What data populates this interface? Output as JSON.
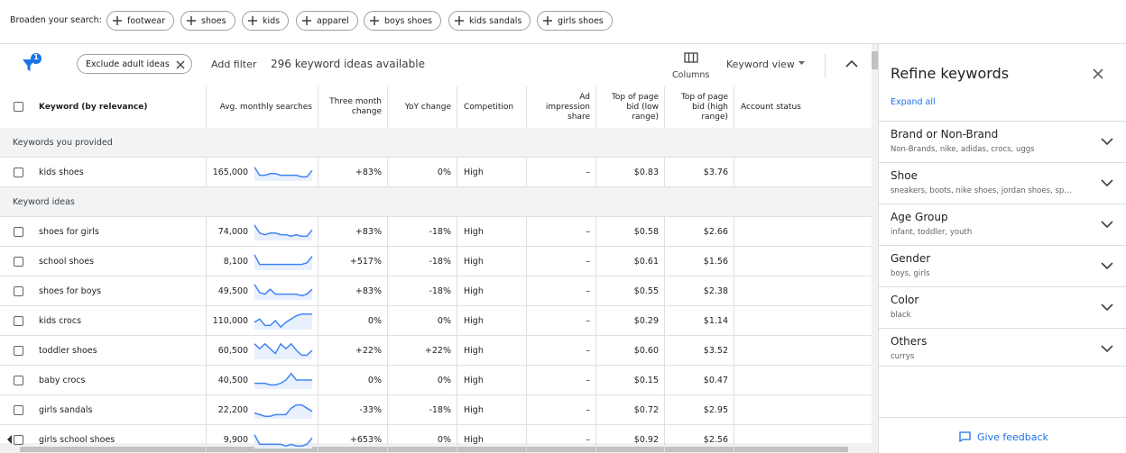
{
  "broaden": {
    "label": "Broaden your search:",
    "chips": [
      "footwear",
      "shoes",
      "kids",
      "apparel",
      "boys shoes",
      "kids sandals",
      "girls shoes"
    ]
  },
  "toolbar": {
    "filter_badge": "1",
    "exclude_chip": "Exclude adult ideas",
    "add_filter": "Add filter",
    "count": "296 keyword ideas available",
    "columns": "Columns",
    "view": "Keyword view"
  },
  "table": {
    "headers": [
      "Keyword (by relevance)",
      "Avg. monthly searches",
      "Three month change",
      "YoY change",
      "Competition",
      "Ad impression share",
      "Top of page bid (low range)",
      "Top of page bid (high range)",
      "Account status"
    ],
    "sections": [
      {
        "title": "Keywords you provided",
        "rows": [
          {
            "keyword": "kids shoes",
            "searches": "165,000",
            "trend": [
              8,
              3,
              3,
              4,
              4,
              3,
              3,
              3,
              3,
              2,
              2,
              6
            ],
            "three_month": "+83%",
            "yoy": "0%",
            "competition": "High",
            "ad_share": "–",
            "bid_low": "$0.83",
            "bid_high": "$3.76"
          }
        ]
      },
      {
        "title": "Keyword ideas",
        "rows": [
          {
            "keyword": "shoes for girls",
            "searches": "74,000",
            "trend": [
              9,
              4,
              3,
              4,
              4,
              3,
              3,
              2,
              3,
              2,
              2,
              6
            ],
            "three_month": "+83%",
            "yoy": "-18%",
            "competition": "High",
            "ad_share": "–",
            "bid_low": "$0.58",
            "bid_high": "$2.66"
          },
          {
            "keyword": "school shoes",
            "searches": "8,100",
            "trend": [
              9,
              3,
              3,
              3,
              3,
              3,
              3,
              3,
              3,
              3,
              4,
              8
            ],
            "three_month": "+517%",
            "yoy": "-18%",
            "competition": "High",
            "ad_share": "–",
            "bid_low": "$0.61",
            "bid_high": "$1.56"
          },
          {
            "keyword": "shoes for boys",
            "searches": "49,500",
            "trend": [
              9,
              4,
              3,
              6,
              3,
              3,
              3,
              3,
              3,
              2,
              3,
              6
            ],
            "three_month": "+83%",
            "yoy": "-18%",
            "competition": "High",
            "ad_share": "–",
            "bid_low": "$0.55",
            "bid_high": "$2.38"
          },
          {
            "keyword": "kids crocs",
            "searches": "110,000",
            "trend": [
              4,
              6,
              2,
              2,
              5,
              1,
              4,
              6,
              8,
              9,
              9,
              9
            ],
            "three_month": "0%",
            "yoy": "0%",
            "competition": "High",
            "ad_share": "–",
            "bid_low": "$0.29",
            "bid_high": "$1.14"
          },
          {
            "keyword": "toddler shoes",
            "searches": "60,500",
            "trend": [
              9,
              6,
              9,
              6,
              3,
              9,
              6,
              9,
              5,
              2,
              2,
              5
            ],
            "three_month": "+22%",
            "yoy": "+22%",
            "competition": "High",
            "ad_share": "–",
            "bid_low": "$0.60",
            "bid_high": "$3.52"
          },
          {
            "keyword": "baby crocs",
            "searches": "40,500",
            "trend": [
              3,
              3,
              3,
              2,
              2,
              3,
              5,
              9,
              5,
              5,
              5,
              5
            ],
            "three_month": "0%",
            "yoy": "0%",
            "competition": "High",
            "ad_share": "–",
            "bid_low": "$0.15",
            "bid_high": "$0.47"
          },
          {
            "keyword": "girls sandals",
            "searches": "22,200",
            "trend": [
              3,
              2,
              1,
              1,
              2,
              2,
              2,
              6,
              8,
              8,
              6,
              4
            ],
            "three_month": "-33%",
            "yoy": "-18%",
            "competition": "High",
            "ad_share": "–",
            "bid_low": "$0.72",
            "bid_high": "$2.95"
          },
          {
            "keyword": "girls school shoes",
            "searches": "9,900",
            "trend": [
              8,
              2,
              2,
              2,
              2,
              2,
              1,
              2,
              1,
              1,
              2,
              6
            ],
            "three_month": "+653%",
            "yoy": "0%",
            "competition": "High",
            "ad_share": "–",
            "bid_low": "$0.92",
            "bid_high": "$2.56"
          }
        ]
      }
    ]
  },
  "refine": {
    "title": "Refine keywords",
    "expand_all": "Expand all",
    "groups": [
      {
        "title": "Brand or Non-Brand",
        "items": "Non-Brands, nike, adidas, crocs, uggs"
      },
      {
        "title": "Shoe",
        "items": "sneakers, boots, nike shoes, jordan shoes, sp…"
      },
      {
        "title": "Age Group",
        "items": "infant, toddler, youth"
      },
      {
        "title": "Gender",
        "items": "boys, girls"
      },
      {
        "title": "Color",
        "items": "black"
      },
      {
        "title": "Others",
        "items": "currys"
      }
    ],
    "feedback": "Give feedback"
  }
}
